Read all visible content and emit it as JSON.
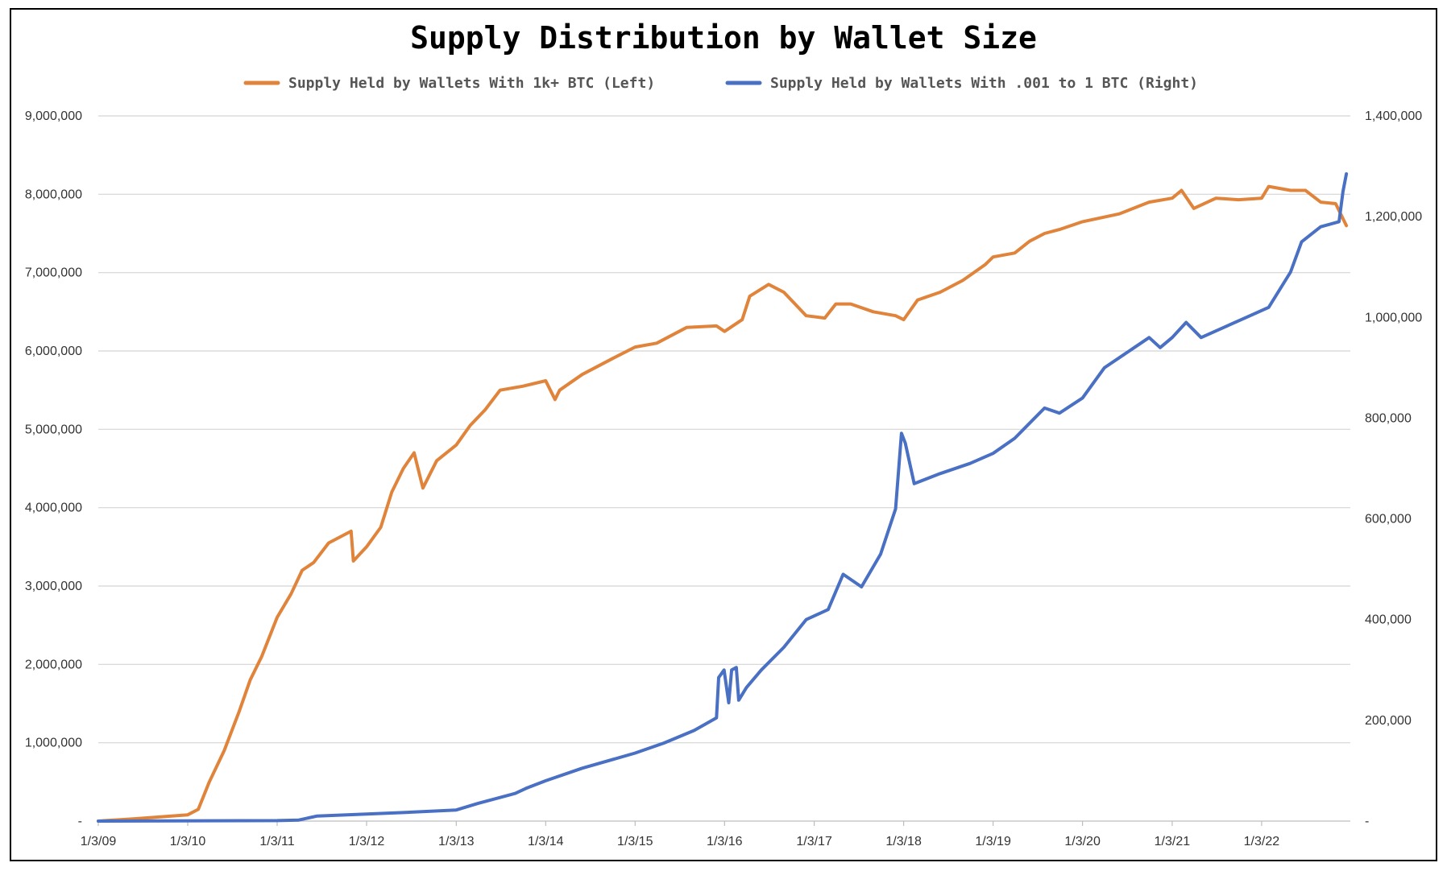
{
  "chart_data": {
    "type": "line",
    "title": "Supply Distribution by Wallet Size",
    "colors": {
      "left": "#E0843B",
      "right": "#4A70C4"
    },
    "legend_position": "top-center",
    "grid": "horizontal",
    "x_axis": {
      "type": "date",
      "range": [
        "2009-01-03",
        "2022-12-31"
      ],
      "tick_labels": [
        "1/3/09",
        "1/3/10",
        "1/3/11",
        "1/3/12",
        "1/3/13",
        "1/3/14",
        "1/3/15",
        "1/3/16",
        "1/3/17",
        "1/3/18",
        "1/3/19",
        "1/3/20",
        "1/3/21",
        "1/3/22"
      ],
      "tick_dates": [
        "2009-01-03",
        "2010-01-03",
        "2011-01-03",
        "2012-01-03",
        "2013-01-03",
        "2014-01-03",
        "2015-01-03",
        "2016-01-03",
        "2017-01-03",
        "2018-01-03",
        "2019-01-03",
        "2020-01-03",
        "2021-01-03",
        "2022-01-03"
      ]
    },
    "y_left": {
      "range": [
        0,
        9000000
      ],
      "tick_labels": [
        "-",
        "1,000,000",
        "2,000,000",
        "3,000,000",
        "4,000,000",
        "5,000,000",
        "6,000,000",
        "7,000,000",
        "8,000,000",
        "9,000,000"
      ]
    },
    "y_right": {
      "range": [
        0,
        1400000
      ],
      "tick_labels": [
        "-",
        "200,000",
        "400,000",
        "600,000",
        "800,000",
        "1,000,000",
        "1,200,000",
        "1,400,000"
      ]
    },
    "series": [
      {
        "name": "Supply Held by Wallets With 1k+ BTC (Left)",
        "axis": "left",
        "points": [
          [
            "2009-01-03",
            0
          ],
          [
            "2009-06-01",
            30000
          ],
          [
            "2010-01-03",
            80000
          ],
          [
            "2010-02-15",
            150000
          ],
          [
            "2010-04-01",
            500000
          ],
          [
            "2010-06-01",
            900000
          ],
          [
            "2010-08-01",
            1400000
          ],
          [
            "2010-09-15",
            1800000
          ],
          [
            "2010-11-01",
            2100000
          ],
          [
            "2011-01-03",
            2600000
          ],
          [
            "2011-03-01",
            2900000
          ],
          [
            "2011-04-15",
            3200000
          ],
          [
            "2011-06-01",
            3300000
          ],
          [
            "2011-08-01",
            3550000
          ],
          [
            "2011-11-01",
            3700000
          ],
          [
            "2011-11-10",
            3320000
          ],
          [
            "2012-01-03",
            3500000
          ],
          [
            "2012-03-01",
            3750000
          ],
          [
            "2012-04-15",
            4200000
          ],
          [
            "2012-06-01",
            4500000
          ],
          [
            "2012-07-15",
            4700000
          ],
          [
            "2012-08-20",
            4250000
          ],
          [
            "2012-10-15",
            4600000
          ],
          [
            "2013-01-03",
            4800000
          ],
          [
            "2013-03-01",
            5050000
          ],
          [
            "2013-05-01",
            5250000
          ],
          [
            "2013-07-01",
            5500000
          ],
          [
            "2013-10-01",
            5550000
          ],
          [
            "2014-01-03",
            5620000
          ],
          [
            "2014-02-10",
            5380000
          ],
          [
            "2014-03-01",
            5500000
          ],
          [
            "2014-06-01",
            5700000
          ],
          [
            "2014-10-01",
            5900000
          ],
          [
            "2015-01-03",
            6050000
          ],
          [
            "2015-04-01",
            6100000
          ],
          [
            "2015-08-01",
            6300000
          ],
          [
            "2015-12-01",
            6320000
          ],
          [
            "2016-01-03",
            6250000
          ],
          [
            "2016-03-15",
            6400000
          ],
          [
            "2016-04-15",
            6700000
          ],
          [
            "2016-07-01",
            6850000
          ],
          [
            "2016-09-01",
            6750000
          ],
          [
            "2016-12-01",
            6450000
          ],
          [
            "2017-02-15",
            6420000
          ],
          [
            "2017-04-01",
            6600000
          ],
          [
            "2017-06-01",
            6600000
          ],
          [
            "2017-09-01",
            6500000
          ],
          [
            "2017-12-01",
            6450000
          ],
          [
            "2018-01-03",
            6400000
          ],
          [
            "2018-03-01",
            6650000
          ],
          [
            "2018-06-01",
            6750000
          ],
          [
            "2018-09-01",
            6900000
          ],
          [
            "2018-12-01",
            7100000
          ],
          [
            "2019-01-03",
            7200000
          ],
          [
            "2019-04-01",
            7250000
          ],
          [
            "2019-06-01",
            7400000
          ],
          [
            "2019-08-01",
            7500000
          ],
          [
            "2019-10-01",
            7550000
          ],
          [
            "2020-01-03",
            7650000
          ],
          [
            "2020-06-01",
            7750000
          ],
          [
            "2020-10-01",
            7900000
          ],
          [
            "2021-01-03",
            7950000
          ],
          [
            "2021-02-10",
            8050000
          ],
          [
            "2021-04-01",
            7820000
          ],
          [
            "2021-07-01",
            7950000
          ],
          [
            "2021-10-01",
            7930000
          ],
          [
            "2022-01-03",
            7950000
          ],
          [
            "2022-02-01",
            8100000
          ],
          [
            "2022-05-01",
            8050000
          ],
          [
            "2022-07-01",
            8050000
          ],
          [
            "2022-09-01",
            7900000
          ],
          [
            "2022-11-01",
            7880000
          ],
          [
            "2022-12-15",
            7600000
          ]
        ]
      },
      {
        "name": "Supply Held by Wallets With .001 to 1 BTC (Right)",
        "axis": "right",
        "points": [
          [
            "2009-01-03",
            0
          ],
          [
            "2011-01-03",
            1000
          ],
          [
            "2011-04-01",
            2000
          ],
          [
            "2011-06-15",
            10000
          ],
          [
            "2012-01-03",
            14000
          ],
          [
            "2012-06-01",
            17000
          ],
          [
            "2013-01-03",
            22000
          ],
          [
            "2013-04-01",
            35000
          ],
          [
            "2013-09-01",
            55000
          ],
          [
            "2013-10-15",
            65000
          ],
          [
            "2014-01-03",
            80000
          ],
          [
            "2014-06-01",
            105000
          ],
          [
            "2015-01-03",
            135000
          ],
          [
            "2015-05-01",
            155000
          ],
          [
            "2015-09-01",
            180000
          ],
          [
            "2015-12-01",
            205000
          ],
          [
            "2015-12-10",
            285000
          ],
          [
            "2016-01-01",
            300000
          ],
          [
            "2016-01-20",
            235000
          ],
          [
            "2016-02-01",
            300000
          ],
          [
            "2016-02-20",
            305000
          ],
          [
            "2016-03-01",
            240000
          ],
          [
            "2016-04-01",
            265000
          ],
          [
            "2016-06-01",
            300000
          ],
          [
            "2016-09-01",
            345000
          ],
          [
            "2016-12-01",
            400000
          ],
          [
            "2017-03-01",
            420000
          ],
          [
            "2017-05-01",
            490000
          ],
          [
            "2017-07-15",
            465000
          ],
          [
            "2017-10-01",
            530000
          ],
          [
            "2017-12-01",
            620000
          ],
          [
            "2017-12-25",
            770000
          ],
          [
            "2018-01-10",
            750000
          ],
          [
            "2018-02-15",
            670000
          ],
          [
            "2018-06-01",
            690000
          ],
          [
            "2018-10-01",
            710000
          ],
          [
            "2019-01-03",
            730000
          ],
          [
            "2019-04-01",
            760000
          ],
          [
            "2019-08-01",
            820000
          ],
          [
            "2019-10-01",
            810000
          ],
          [
            "2020-01-03",
            840000
          ],
          [
            "2020-04-01",
            900000
          ],
          [
            "2020-08-01",
            940000
          ],
          [
            "2020-10-01",
            960000
          ],
          [
            "2020-11-15",
            940000
          ],
          [
            "2021-01-03",
            960000
          ],
          [
            "2021-03-01",
            990000
          ],
          [
            "2021-05-01",
            960000
          ],
          [
            "2021-08-01",
            980000
          ],
          [
            "2021-11-01",
            1000000
          ],
          [
            "2022-02-01",
            1020000
          ],
          [
            "2022-05-01",
            1090000
          ],
          [
            "2022-06-15",
            1150000
          ],
          [
            "2022-09-01",
            1180000
          ],
          [
            "2022-11-15",
            1190000
          ],
          [
            "2022-12-01",
            1250000
          ],
          [
            "2022-12-15",
            1285000
          ]
        ]
      }
    ]
  }
}
